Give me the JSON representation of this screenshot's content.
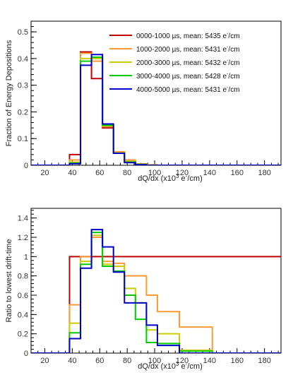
{
  "chart_data": [
    {
      "type": "line",
      "style": "step-histogram",
      "title": "",
      "xlabel": "dQ/dx (x10",
      "xlabel_sup": "3",
      "xlabel_mid": " e",
      "xlabel_sup2": "-",
      "xlabel_end": "/cm)",
      "ylabel": "Fraction of Energy Depositions",
      "xlim": [
        10,
        192
      ],
      "ylim": [
        0,
        0.54
      ],
      "xticks": [
        20,
        40,
        60,
        80,
        100,
        120,
        140,
        160,
        180
      ],
      "xtick_labels": [
        "20",
        "40",
        "60",
        "80",
        "100",
        "120",
        "140",
        "160",
        "180"
      ],
      "yticks": [
        0,
        0.1,
        0.2,
        0.3,
        0.4,
        0.5
      ],
      "ytick_labels": [
        "0",
        "0.1",
        "0.2",
        "0.3",
        "0.4",
        "0.5"
      ],
      "bin_edges": [
        0,
        38,
        46,
        54,
        62,
        70,
        78,
        86,
        94,
        102,
        192
      ],
      "grid": false,
      "legend_position": "top-right",
      "series": [
        {
          "name": "0000-1000 µs, mean: 5435 e",
          "name_sup": "-",
          "name_end": "/cm",
          "color": "#c00000",
          "values": [
            0,
            0.04,
            0.425,
            0.325,
            0.14,
            0.05,
            0.015,
            0.005,
            0.0,
            0
          ]
        },
        {
          "name": "1000-2000 µs, mean: 5431 e",
          "name_sup": "-",
          "name_end": "/cm",
          "color": "#ff9933",
          "values": [
            0,
            0.02,
            0.42,
            0.39,
            0.145,
            0.05,
            0.02,
            0.005,
            0.002,
            0
          ]
        },
        {
          "name": "2000-3000 µs, mean: 5432 e",
          "name_sup": "-",
          "name_end": "/cm",
          "color": "#cccc00",
          "values": [
            0,
            0.012,
            0.4,
            0.4,
            0.148,
            0.047,
            0.015,
            0.004,
            0.001,
            0
          ]
        },
        {
          "name": "3000-4000 µs, mean: 5428 e",
          "name_sup": "-",
          "name_end": "/cm",
          "color": "#00cc00",
          "values": [
            0,
            0.008,
            0.39,
            0.405,
            0.15,
            0.045,
            0.012,
            0.003,
            0.0,
            0
          ]
        },
        {
          "name": "4000-5000 µs, mean: 5431 e",
          "name_sup": "-",
          "name_end": "/cm",
          "color": "#0000cc",
          "values": [
            0,
            0.006,
            0.375,
            0.415,
            0.155,
            0.045,
            0.01,
            0.002,
            0.0,
            0
          ]
        }
      ]
    },
    {
      "type": "line",
      "style": "step-histogram",
      "title": "",
      "xlabel": "dQ/dx (x10",
      "xlabel_sup": "3",
      "xlabel_mid": " e",
      "xlabel_sup2": "-",
      "xlabel_end": "/cm)",
      "ylabel": "Ratio to lowest drift-time",
      "xlim": [
        10,
        192
      ],
      "ylim": [
        0,
        1.5
      ],
      "xticks": [
        20,
        40,
        60,
        80,
        100,
        120,
        140,
        160,
        180
      ],
      "xtick_labels": [
        "20",
        "40",
        "60",
        "80",
        "100",
        "120",
        "140",
        "160",
        "180"
      ],
      "yticks": [
        0,
        0.2,
        0.4,
        0.6,
        0.8,
        1,
        1.2,
        1.4
      ],
      "ytick_labels": [
        "0",
        "0.2",
        "0.4",
        "0.6",
        "0.8",
        "1",
        "1.2",
        "1.4"
      ],
      "bin_edges": [
        10,
        38,
        46,
        54,
        62,
        70,
        78,
        86,
        94,
        102,
        118,
        142,
        192
      ],
      "grid": false,
      "series": [
        {
          "name": "0000-1000 µs",
          "color": "#c00000",
          "values": [
            0,
            1,
            1,
            1,
            1,
            1,
            1,
            1,
            1,
            1,
            1,
            1
          ]
        },
        {
          "name": "1000-2000 µs",
          "color": "#ff9933",
          "values": [
            0,
            0.5,
            1.0,
            1.2,
            0.95,
            0.93,
            0.8,
            0.8,
            0.6,
            0.43,
            0.27,
            0
          ]
        },
        {
          "name": "2000-3000 µs",
          "color": "#cccc00",
          "values": [
            0,
            0.31,
            0.95,
            1.22,
            0.92,
            0.9,
            0.67,
            0.52,
            0.24,
            0.2,
            0.03,
            0
          ]
        },
        {
          "name": "3000-4000 µs",
          "color": "#00cc00",
          "values": [
            0,
            0.21,
            0.92,
            1.25,
            0.9,
            0.85,
            0.6,
            0.35,
            0.11,
            0.1,
            0.02,
            0
          ]
        },
        {
          "name": "4000-5000 µs",
          "color": "#0000cc",
          "values": [
            0,
            0.15,
            0.88,
            1.28,
            1.1,
            0.84,
            0.52,
            0.52,
            0.29,
            0.08,
            0.0,
            0
          ]
        }
      ]
    }
  ]
}
